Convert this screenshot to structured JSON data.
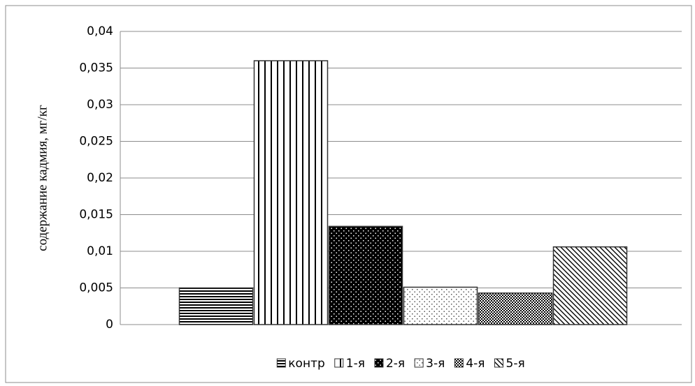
{
  "chart_data": {
    "type": "bar",
    "y_label": "содержание кадмия, мг/кг",
    "categories": [
      null
    ],
    "series": [
      {
        "name": "контр",
        "pattern": "hlines",
        "values": [
          0.005
        ]
      },
      {
        "name": "1-я",
        "pattern": "vlines",
        "values": [
          0.036
        ]
      },
      {
        "name": "2-я",
        "pattern": "darkdots",
        "values": [
          0.0134
        ]
      },
      {
        "name": "3-я",
        "pattern": "lightdots",
        "values": [
          0.0051
        ]
      },
      {
        "name": "4-я",
        "pattern": "checker",
        "values": [
          0.0043
        ]
      },
      {
        "name": "5-я",
        "pattern": "diag",
        "values": [
          0.0106
        ]
      }
    ],
    "ylim": [
      0,
      0.04
    ],
    "yticks": [
      0,
      {
        "value": 0.005,
        "label": "0,005"
      },
      {
        "value": 0.01,
        "label": "0,01"
      },
      {
        "value": 0.015,
        "label": "0,015"
      },
      {
        "value": 0.02,
        "label": "0,02"
      },
      {
        "value": 0.025,
        "label": "0,025"
      },
      {
        "value": 0.03,
        "label": "0,03"
      },
      {
        "value": 0.035,
        "label": "0,035"
      },
      {
        "value": 0.04,
        "label": "0,04"
      }
    ],
    "grid": true,
    "legend": "bottom"
  }
}
